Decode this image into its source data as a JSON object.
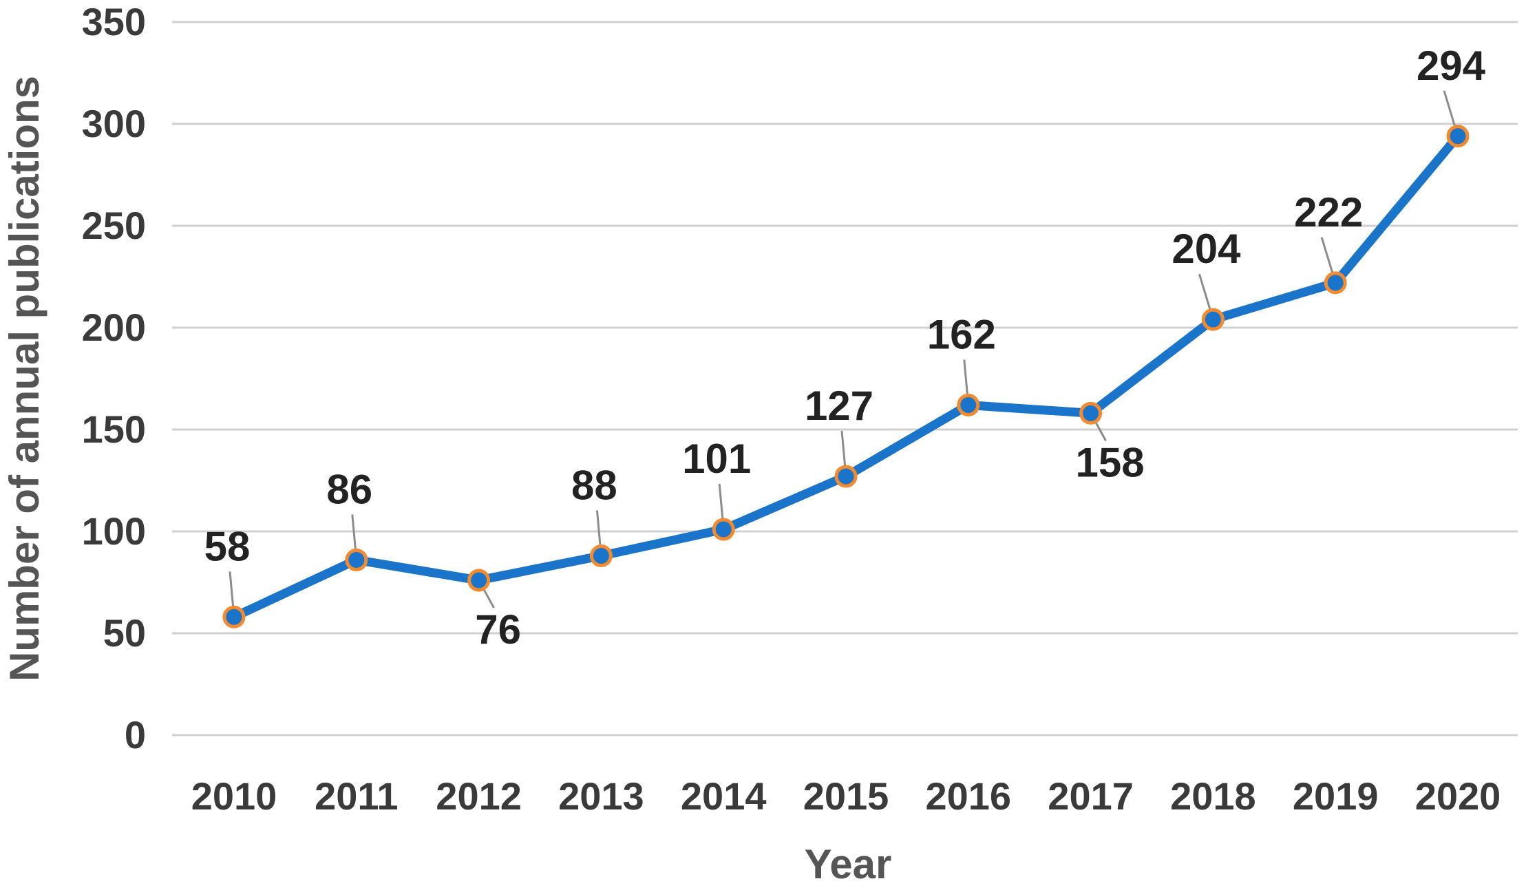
{
  "chart_data": {
    "type": "line",
    "title": "",
    "xlabel": "Year",
    "ylabel": "Number of annual publications",
    "categories": [
      "2010",
      "2011",
      "2012",
      "2013",
      "2014",
      "2015",
      "2016",
      "2017",
      "2018",
      "2019",
      "2020"
    ],
    "series": [
      {
        "values": [
          58,
          86,
          76,
          88,
          101,
          127,
          162,
          158,
          204,
          222,
          294
        ]
      }
    ],
    "ylim": [
      0,
      350
    ],
    "yticks": [
      0,
      50,
      100,
      150,
      200,
      250,
      300,
      350
    ],
    "grid": true,
    "legend": "none",
    "colors": {
      "line": "#1a74c9",
      "marker_edge": "#f28b30",
      "marker_fill": "#1a74c9"
    },
    "data_labels": [
      "58",
      "86",
      "76",
      "88",
      "101",
      "127",
      "162",
      "158",
      "204",
      "222",
      "294"
    ],
    "label_placement": [
      "above",
      "above",
      "below",
      "above",
      "above",
      "above",
      "above",
      "below",
      "above",
      "above",
      "above"
    ]
  }
}
